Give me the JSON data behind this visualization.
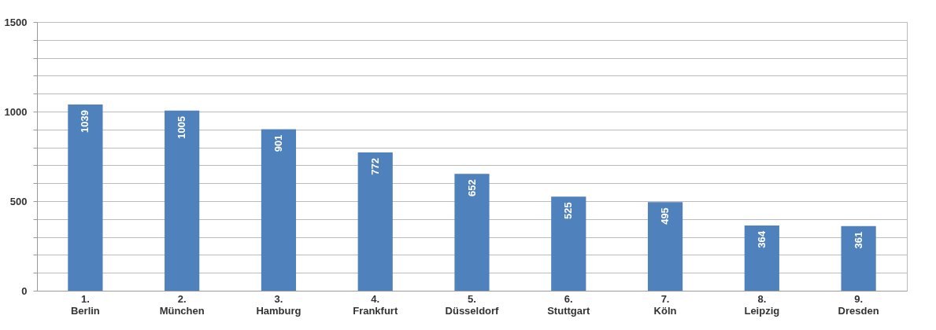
{
  "chart_data": {
    "type": "bar",
    "categories": [
      "1.\nBerlin",
      "2.\nMünchen",
      "3.\nHamburg",
      "4.\nFrankfurt",
      "5.\nDüsseldorf",
      "6.\nStuttgart",
      "7.\nKöln",
      "8.\nLeipzig",
      "9.\nDresden"
    ],
    "values": [
      1039,
      1005,
      901,
      772,
      652,
      525,
      495,
      364,
      361
    ],
    "color": "#4f81bd",
    "ylim": [
      0,
      1500
    ],
    "yticks": [
      0,
      {
        "value": 100,
        "label": null
      },
      {
        "value": 200,
        "label": null
      },
      {
        "value": 300,
        "label": null
      },
      {
        "value": 400,
        "label": null
      },
      500,
      {
        "value": 600,
        "label": null
      },
      {
        "value": 700,
        "label": null
      },
      {
        "value": 800,
        "label": null
      },
      {
        "value": 900,
        "label": null
      },
      1000,
      {
        "value": 1100,
        "label": null
      },
      {
        "value": 1200,
        "label": null
      },
      {
        "value": 1300,
        "label": null
      },
      {
        "value": 1400,
        "label": null
      },
      1500
    ],
    "grid": true,
    "data_labels": true
  }
}
